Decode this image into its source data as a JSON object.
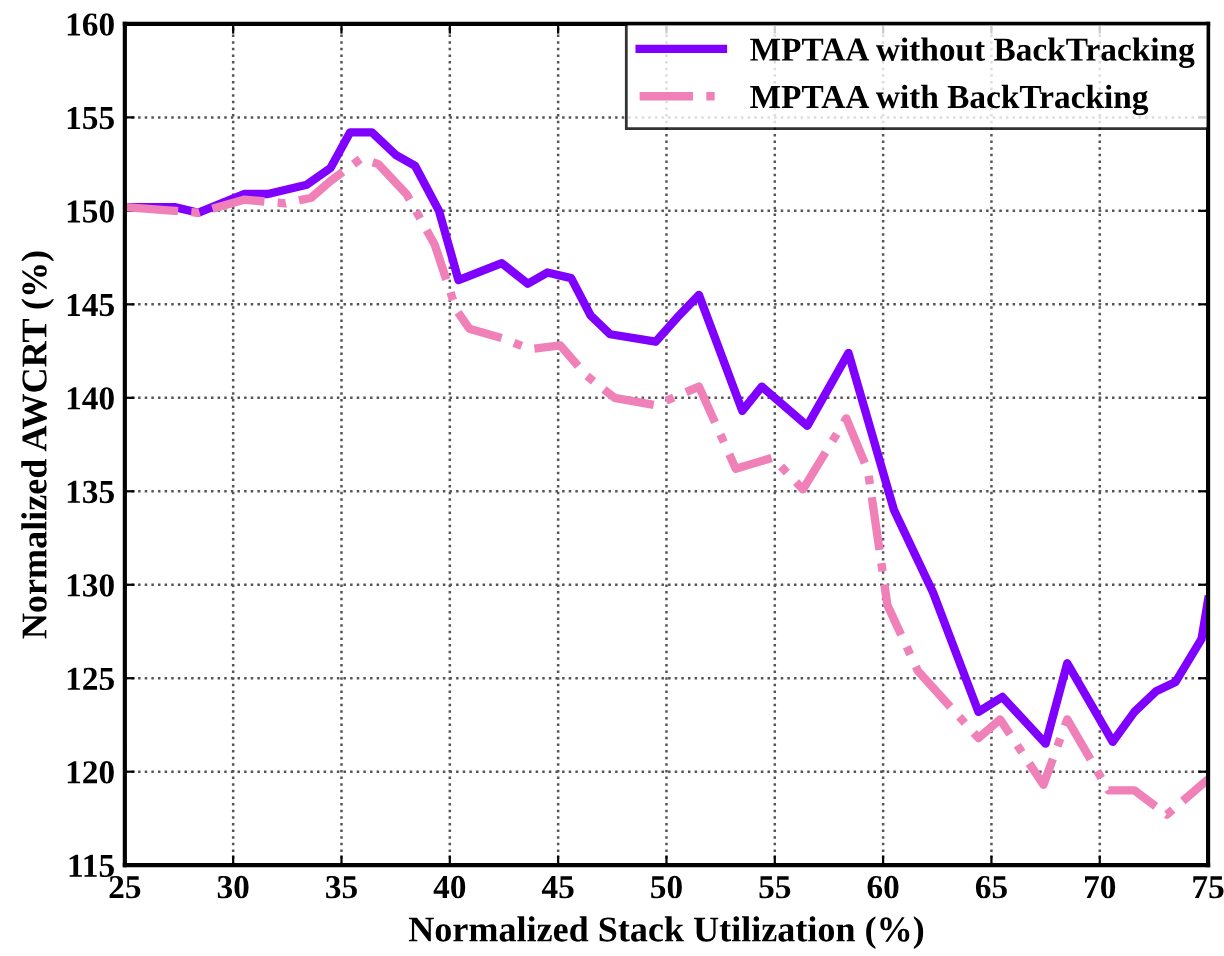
{
  "chart_data": {
    "type": "line",
    "xlabel": "Normalized Stack Utilization (%)",
    "ylabel": "Normalized AWCRT (%)",
    "xlim": [
      25,
      75
    ],
    "ylim": [
      115,
      160
    ],
    "xticks": [
      25,
      30,
      35,
      40,
      45,
      50,
      55,
      60,
      65,
      70,
      75
    ],
    "yticks": [
      115,
      120,
      125,
      130,
      135,
      140,
      145,
      150,
      155,
      160
    ],
    "grid": true,
    "legend": "top right",
    "marker": "none",
    "series": [
      {
        "name": "MPTAA without BackTracking",
        "color": "#7f00ff",
        "line_style": "solid",
        "x": [
          25,
          27.3,
          28.4,
          30.5,
          31.6,
          33.4,
          34.5,
          35.4,
          36.4,
          37.5,
          38.4,
          39.5,
          40.4,
          42.4,
          43.6,
          44.5,
          45.6,
          46.5,
          47.4,
          49.5,
          50.5,
          51.5,
          53.5,
          54.4,
          56.5,
          58.4,
          60.5,
          62.3,
          64.4,
          65.5,
          67.5,
          68.5,
          70.6,
          71.6,
          72.6,
          73.5,
          74.7,
          75
        ],
        "values": [
          150.2,
          150.2,
          149.9,
          150.9,
          150.9,
          151.4,
          152.3,
          154.2,
          154.2,
          153.0,
          152.4,
          150.0,
          146.3,
          147.2,
          146.1,
          146.7,
          146.4,
          144.4,
          143.4,
          143.0,
          144.3,
          145.5,
          139.3,
          140.6,
          138.5,
          142.4,
          134.0,
          129.6,
          123.2,
          124.0,
          121.5,
          125.8,
          121.6,
          123.2,
          124.3,
          124.8,
          127.1,
          129.2
        ]
      },
      {
        "name": "MPTAA with BackTracking",
        "color": "#f080b8",
        "line_style": "dashdot",
        "x": [
          25,
          28.4,
          30.5,
          32.4,
          33.6,
          34.5,
          35.9,
          36.7,
          38.0,
          39.3,
          40.3,
          40.9,
          42.4,
          43.7,
          45.1,
          46.3,
          47.6,
          49.5,
          51.5,
          53.2,
          54.9,
          56.3,
          58.3,
          59.3,
          60.2,
          61.6,
          64.4,
          65.4,
          67.4,
          68.5,
          70.4,
          71.6,
          73.1,
          75
        ],
        "values": [
          150.2,
          149.9,
          150.6,
          150.4,
          150.7,
          151.6,
          152.8,
          152.5,
          150.9,
          148.2,
          144.7,
          143.7,
          143.2,
          142.6,
          142.8,
          141.2,
          140.0,
          139.6,
          140.6,
          136.2,
          136.8,
          135.1,
          138.9,
          136.1,
          128.9,
          125.4,
          121.8,
          122.8,
          119.3,
          122.8,
          119.0,
          119.0,
          117.7,
          119.6
        ]
      }
    ]
  }
}
